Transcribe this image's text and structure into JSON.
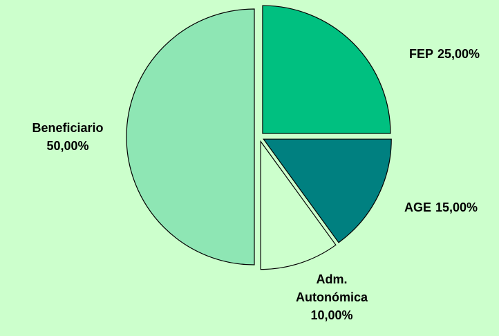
{
  "chart_data": {
    "type": "pie",
    "categories": [
      "FEP",
      "AGE",
      "Adm. Autonómica",
      "Beneficiario"
    ],
    "values": [
      25,
      15,
      10,
      50
    ],
    "value_labels": [
      "25,00%",
      "15,00%",
      "10,00%",
      "50,00%"
    ],
    "colors": [
      "#00c080",
      "#008080",
      "#ccffcc",
      "#8ee6b4"
    ],
    "background": "#ccffcc"
  }
}
